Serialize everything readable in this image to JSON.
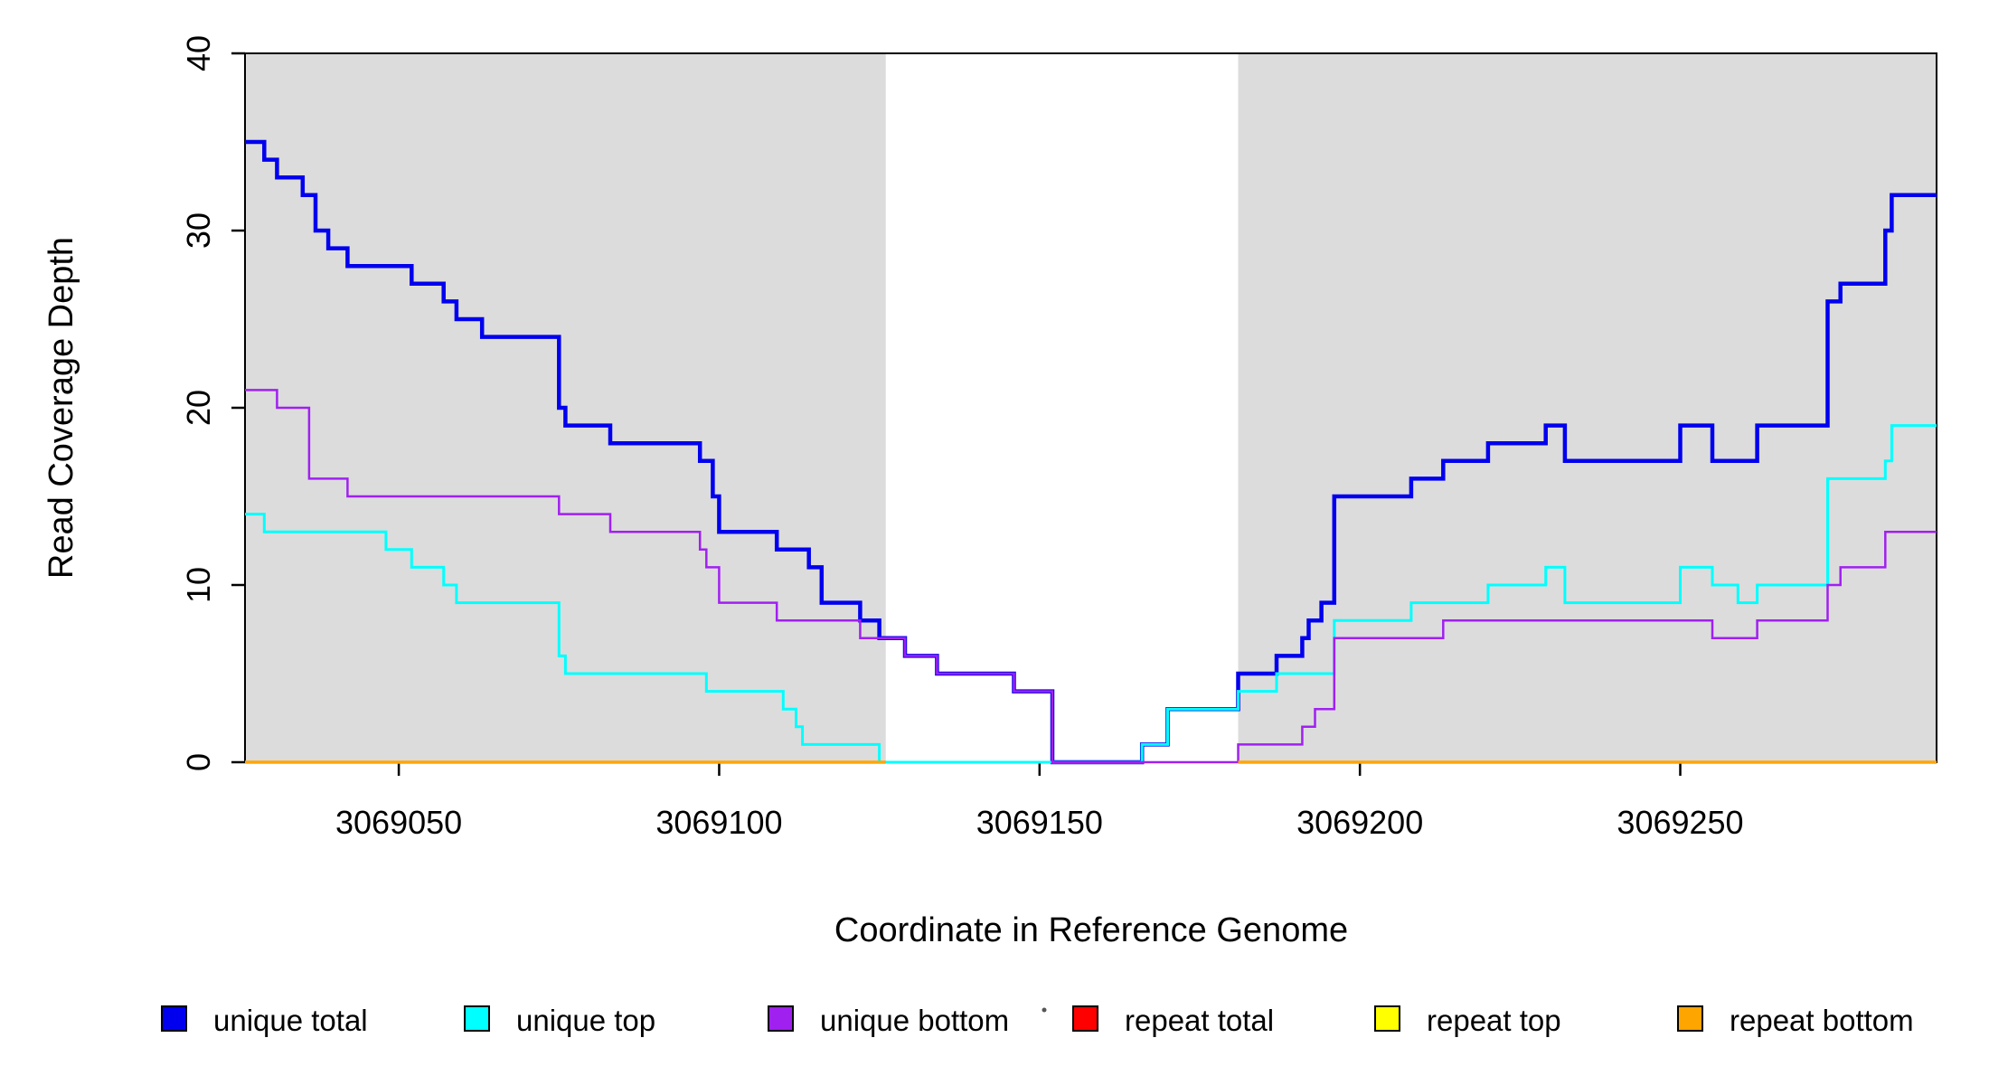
{
  "chart_data": {
    "type": "line",
    "subtype": "step-coverage-plot",
    "title": "",
    "xlabel": "Coordinate in Reference Genome",
    "ylabel": "Read Coverage Depth",
    "xlim": [
      3069026,
      3069290
    ],
    "ylim": [
      0,
      40
    ],
    "x_ticks": [
      3069050,
      3069100,
      3069150,
      3069200,
      3069250
    ],
    "y_ticks": [
      0,
      10,
      20,
      30,
      40
    ],
    "grid": false,
    "legend_position": "bottom",
    "shade_color": "#DCDCDC",
    "background_color": "#FFFFFF",
    "shaded_regions": [
      {
        "name": "repeat-region-left",
        "from": 3069026,
        "to": 3069126
      },
      {
        "name": "repeat-region-right",
        "from": 3069181,
        "to": 3069290
      }
    ],
    "series": [
      {
        "name": "unique total",
        "color": "#0000EE",
        "width": 4.5,
        "segments": [
          [
            [
              3069026,
              35
            ],
            [
              3069029,
              34
            ],
            [
              3069031,
              33
            ],
            [
              3069035,
              32
            ],
            [
              3069037,
              30
            ],
            [
              3069039,
              29
            ],
            [
              3069042,
              28
            ],
            [
              3069052,
              27
            ],
            [
              3069057,
              26
            ],
            [
              3069059,
              25
            ],
            [
              3069063,
              24
            ],
            [
              3069075,
              20
            ],
            [
              3069076,
              19
            ],
            [
              3069083,
              18
            ],
            [
              3069097,
              17
            ],
            [
              3069099,
              15
            ],
            [
              3069100,
              13
            ],
            [
              3069109,
              12
            ],
            [
              3069114,
              11
            ],
            [
              3069116,
              9
            ],
            [
              3069122,
              8
            ],
            [
              3069125,
              7
            ],
            [
              3069129,
              6
            ],
            [
              3069134,
              5
            ],
            [
              3069146,
              4
            ],
            [
              3069152,
              0
            ],
            [
              3069166,
              1
            ],
            [
              3069170,
              3
            ],
            [
              3069181,
              5
            ],
            [
              3069187,
              6
            ],
            [
              3069191,
              7
            ],
            [
              3069192,
              8
            ],
            [
              3069194,
              9
            ],
            [
              3069196,
              15
            ],
            [
              3069208,
              16
            ],
            [
              3069213,
              17
            ],
            [
              3069220,
              18
            ],
            [
              3069229,
              19
            ],
            [
              3069232,
              17
            ],
            [
              3069250,
              19
            ],
            [
              3069255,
              17
            ],
            [
              3069262,
              19
            ],
            [
              3069273,
              26
            ],
            [
              3069275,
              27
            ],
            [
              3069282,
              30
            ],
            [
              3069283,
              32
            ],
            [
              3069290,
              32
            ]
          ]
        ]
      },
      {
        "name": "unique top",
        "color": "#00FFFF",
        "width": 3,
        "segments": [
          [
            [
              3069026,
              14
            ],
            [
              3069029,
              13
            ],
            [
              3069048,
              12
            ],
            [
              3069052,
              11
            ],
            [
              3069057,
              10
            ],
            [
              3069059,
              9
            ],
            [
              3069075,
              6
            ],
            [
              3069076,
              5
            ],
            [
              3069098,
              4
            ],
            [
              3069110,
              3
            ],
            [
              3069112,
              2
            ],
            [
              3069113,
              1
            ],
            [
              3069125,
              0
            ],
            [
              3069166,
              1
            ],
            [
              3069170,
              3
            ],
            [
              3069181,
              4
            ],
            [
              3069187,
              5
            ],
            [
              3069196,
              8
            ],
            [
              3069208,
              9
            ],
            [
              3069220,
              10
            ],
            [
              3069229,
              11
            ],
            [
              3069232,
              9
            ],
            [
              3069250,
              11
            ],
            [
              3069255,
              10
            ],
            [
              3069259,
              9
            ],
            [
              3069262,
              10
            ],
            [
              3069273,
              16
            ],
            [
              3069282,
              17
            ],
            [
              3069283,
              19
            ],
            [
              3069290,
              19
            ]
          ]
        ]
      },
      {
        "name": "unique bottom",
        "color": "#A020F0",
        "width": 2.5,
        "segments": [
          [
            [
              3069026,
              21
            ],
            [
              3069031,
              20
            ],
            [
              3069036,
              16
            ],
            [
              3069042,
              15
            ],
            [
              3069075,
              14
            ],
            [
              3069083,
              13
            ],
            [
              3069097,
              12
            ],
            [
              3069098,
              11
            ],
            [
              3069100,
              9
            ],
            [
              3069109,
              8
            ],
            [
              3069122,
              7
            ],
            [
              3069129,
              6
            ],
            [
              3069134,
              5
            ],
            [
              3069146,
              4
            ],
            [
              3069152,
              0
            ],
            [
              3069181,
              1
            ],
            [
              3069191,
              2
            ],
            [
              3069193,
              3
            ],
            [
              3069196,
              7
            ],
            [
              3069213,
              8
            ],
            [
              3069255,
              7
            ],
            [
              3069262,
              8
            ],
            [
              3069273,
              10
            ],
            [
              3069275,
              11
            ],
            [
              3069282,
              13
            ],
            [
              3069290,
              13
            ]
          ]
        ]
      },
      {
        "name": "repeat total",
        "color": "#FF0000",
        "width": 2.5,
        "segments": [
          [
            [
              3069026,
              0
            ],
            [
              3069126,
              0
            ]
          ],
          [
            [
              3069181,
              0
            ],
            [
              3069290,
              0
            ]
          ]
        ]
      },
      {
        "name": "repeat top",
        "color": "#FFFF00",
        "width": 2.5,
        "segments": [
          [
            [
              3069026,
              0
            ],
            [
              3069126,
              0
            ]
          ],
          [
            [
              3069181,
              0
            ],
            [
              3069290,
              0
            ]
          ]
        ]
      },
      {
        "name": "repeat bottom",
        "color": "#FFA500",
        "width": 3.5,
        "segments": [
          [
            [
              3069026,
              0
            ],
            [
              3069126,
              0
            ]
          ],
          [
            [
              3069181,
              0
            ],
            [
              3069290,
              0
            ]
          ]
        ]
      }
    ]
  }
}
